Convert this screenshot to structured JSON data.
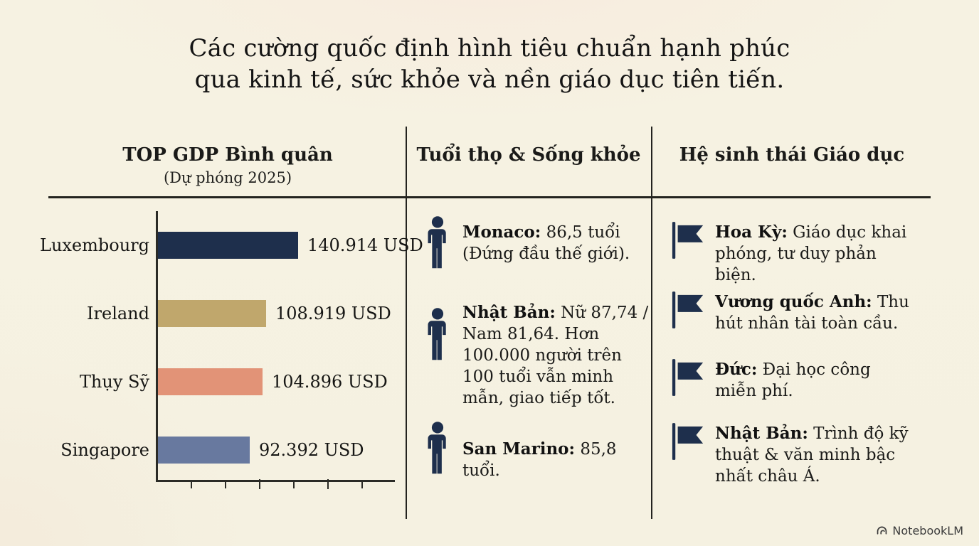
{
  "title": {
    "line1": "Các cường quốc định hình tiêu chuẩn hạnh phúc",
    "line2": "qua kinh tế, sức khỏe và nền giáo dục tiên tiến."
  },
  "sections": {
    "gdp": {
      "header": "TOP GDP Bình quân",
      "subheader": "(Dự phóng 2025)"
    },
    "longevity": {
      "header": "Tuổi thọ & Sống khỏe",
      "items": [
        {
          "icon": "person-icon",
          "lead": "Monaco:",
          "text": " 86,5 tuổi (Đứng đầu thế giới)."
        },
        {
          "icon": "person-icon",
          "lead": "Nhật Bản:",
          "text": " Nữ 87,74 / Nam 81,64. Hơn 100.000 người trên 100 tuổi vẫn minh mẫn, giao tiếp tốt."
        },
        {
          "icon": "person-icon",
          "lead": "San Marino:",
          "text": " 85,8 tuổi."
        }
      ]
    },
    "education": {
      "header": "Hệ sinh thái Giáo dục",
      "items": [
        {
          "icon": "flag-icon",
          "lead": "Hoa Kỳ:",
          "text": " Giáo dục khai phóng, tư duy phản biện."
        },
        {
          "icon": "flag-icon",
          "lead": "Vương quốc Anh:",
          "text": " Thu hút nhân tài toàn cầu."
        },
        {
          "icon": "flag-icon",
          "lead": "Đức:",
          "text": " Đại học công miễn phí."
        },
        {
          "icon": "flag-icon",
          "lead": "Nhật Bản:",
          "text": " Trình độ kỹ thuật & văn minh bậc nhất châu Á."
        }
      ]
    }
  },
  "chart_data": {
    "type": "bar",
    "orientation": "horizontal",
    "title": "TOP GDP Bình quân (Dự phóng 2025)",
    "categories": [
      "Luxembourg",
      "Ireland",
      "Thụy Sỹ",
      "Singapore"
    ],
    "values": [
      140914,
      108919,
      104896,
      92392
    ],
    "value_labels": [
      "140.914 USD",
      "108.919 USD",
      "104.896 USD",
      "92.392 USD"
    ],
    "unit": "USD",
    "bar_colors": [
      "#1e2f4c",
      "#c0a76c",
      "#e29377",
      "#68799f"
    ],
    "xlim": [
      0,
      240000
    ],
    "grid": false,
    "legend": false
  },
  "footer": {
    "brand": "NotebookLM"
  },
  "colors": {
    "background": "#f5f1e1",
    "ink": "#1c1c1a",
    "navy": "#1e2f4c",
    "tan": "#c0a76c",
    "salmon": "#e29377",
    "slate": "#68799f",
    "line": "#23231f"
  }
}
